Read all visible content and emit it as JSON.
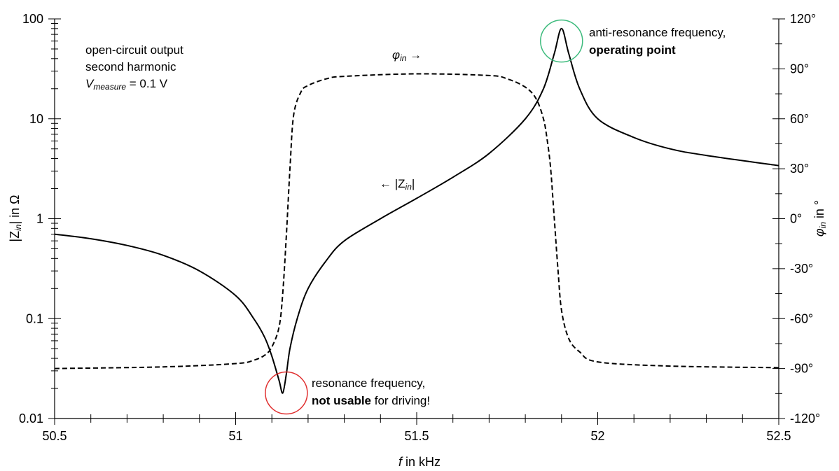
{
  "chart_data": {
    "type": "line",
    "xlabel": {
      "italic": "f",
      "rest": " in kHz"
    },
    "ylabel_left": {
      "pre": "|Z",
      "sub": "in",
      "post": "| in Ω"
    },
    "ylabel_right": {
      "pre": "φ",
      "sub": "in",
      "post": " in °"
    },
    "xlim": [
      50.5,
      52.5
    ],
    "ylim_left": [
      0.01,
      100
    ],
    "ylim_right": [
      -120,
      120
    ],
    "left_scale": "log",
    "x_ticks": [
      "50.5",
      "51",
      "51.5",
      "52",
      "52.5"
    ],
    "x_tick_values": [
      50.5,
      51,
      51.5,
      52,
      52.5
    ],
    "y_left_ticks": [
      "0.01",
      "0.1",
      "1",
      "10",
      "100"
    ],
    "y_left_tick_values": [
      0.01,
      0.1,
      1,
      10,
      100
    ],
    "y_right_ticks": [
      "-120°",
      "-90°",
      "-60°",
      "-30°",
      "0°",
      "30°",
      "60°",
      "90°",
      "120°"
    ],
    "y_right_tick_values": [
      -120,
      -90,
      -60,
      -30,
      0,
      30,
      60,
      90,
      120
    ],
    "grid": false,
    "series": [
      {
        "name": "|Zin|",
        "axis": "left",
        "style": "solid",
        "x": [
          50.5,
          50.6,
          50.7,
          50.8,
          50.9,
          51.0,
          51.05,
          51.08,
          51.1,
          51.12,
          51.13,
          51.14,
          51.15,
          51.17,
          51.2,
          51.25,
          51.3,
          51.4,
          51.5,
          51.6,
          51.7,
          51.8,
          51.85,
          51.88,
          51.9,
          51.92,
          51.95,
          52.0,
          52.1,
          52.2,
          52.3,
          52.5
        ],
        "y": [
          0.7,
          0.63,
          0.54,
          0.43,
          0.3,
          0.17,
          0.1,
          0.065,
          0.042,
          0.024,
          0.018,
          0.028,
          0.05,
          0.1,
          0.2,
          0.38,
          0.6,
          1.0,
          1.6,
          2.6,
          4.5,
          10,
          20,
          45,
          80,
          45,
          20,
          10,
          6.5,
          5.0,
          4.3,
          3.4
        ]
      },
      {
        "name": "φin",
        "axis": "right",
        "style": "dashed",
        "x": [
          50.5,
          50.8,
          51.0,
          51.05,
          51.08,
          51.1,
          51.12,
          51.13,
          51.14,
          51.15,
          51.16,
          51.18,
          51.2,
          51.25,
          51.3,
          51.5,
          51.7,
          51.75,
          51.8,
          51.83,
          51.85,
          51.86,
          51.87,
          51.88,
          51.89,
          51.9,
          51.92,
          51.95,
          52.0,
          52.2,
          52.5
        ],
        "y": [
          -90,
          -89,
          -87,
          -85,
          -82,
          -77,
          -65,
          -45,
          -10,
          30,
          62,
          76,
          80,
          84,
          85.5,
          87,
          86,
          84,
          79,
          72,
          60,
          48,
          30,
          0,
          -30,
          -55,
          -72,
          -80,
          -86,
          -88.5,
          -89.5
        ]
      }
    ],
    "annotations": {
      "info_line1": "open-circuit output",
      "info_line2": "second harmonic",
      "vmeasure_main": "V",
      "vmeasure_sub": "measure",
      "vmeasure_rest": " = 0.1 V",
      "phi_label_main": "φ",
      "phi_label_sub": "in",
      "phi_label_arrow": " →",
      "z_label_pre": "← |Z",
      "z_label_sub": "in",
      "z_label_post": "|",
      "anti_line1": "anti-resonance frequency,",
      "anti_line2": "operating point",
      "res_line1": "resonance frequency,",
      "res_line2_bold": "not usable",
      "res_line2_rest": " for driving!"
    },
    "markers": [
      {
        "name": "anti-resonance",
        "x": 51.9,
        "y": 60,
        "axis": "left",
        "color": "#3dbb7d"
      },
      {
        "name": "resonance",
        "x": 51.14,
        "y": 0.018,
        "axis": "left",
        "color": "#e03030"
      }
    ]
  }
}
